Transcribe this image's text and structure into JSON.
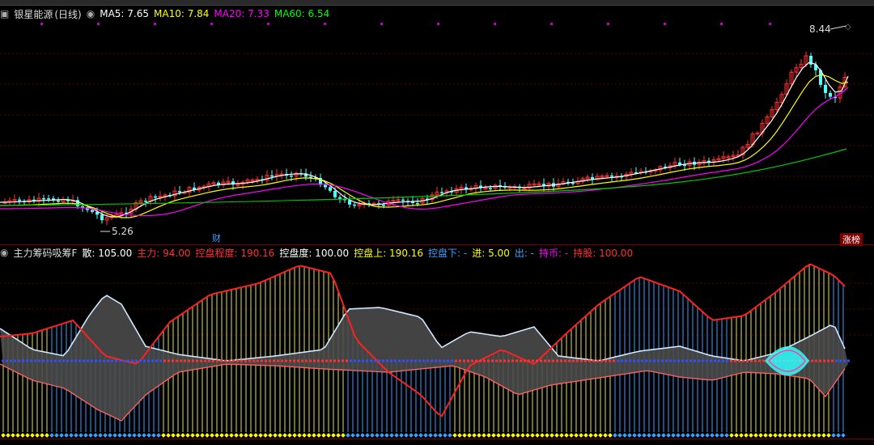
{
  "stock": {
    "name": "银星能源",
    "period": "(日线)"
  },
  "ma": [
    {
      "label": "MA5",
      "value": "7.65",
      "color": "#ffffff"
    },
    {
      "label": "MA10",
      "value": "7.84",
      "color": "#ffff00"
    },
    {
      "label": "MA20",
      "value": "7.33",
      "color": "#ff00ff"
    },
    {
      "label": "MA60",
      "value": "6.54",
      "color": "#00ff00"
    }
  ],
  "annotations": {
    "high": "8.44",
    "low": "5.26",
    "cai": "财",
    "zhangbang": "涨榜"
  },
  "indicator": {
    "title": "主力筹码吸筹F",
    "items": [
      {
        "label": "散: 105.00",
        "color": "#ffffff"
      },
      {
        "label": "主力: 94.00",
        "color": "#ff3030"
      },
      {
        "label": "控盘程度: 190.16",
        "color": "#ff3030"
      },
      {
        "label": "控盘度: 100.00",
        "color": "#ffffff"
      },
      {
        "label": "控盘上: 190.16",
        "color": "#ffff00"
      },
      {
        "label": "控盘下: -",
        "color": "#3aa0ff"
      },
      {
        "label": "进: 5.00",
        "color": "#ffff00"
      },
      {
        "label": "出: -",
        "color": "#3aa0ff"
      },
      {
        "label": "持币: -",
        "color": "#ff00ff"
      },
      {
        "label": "持股: 100.00",
        "color": "#ff3030"
      }
    ]
  },
  "colors": {
    "up": "#ff3030",
    "down": "#54ffff",
    "ma5": "#ffffff",
    "ma10": "#ffff00",
    "ma20": "#ff00ff",
    "ma60": "#00c800"
  }
}
